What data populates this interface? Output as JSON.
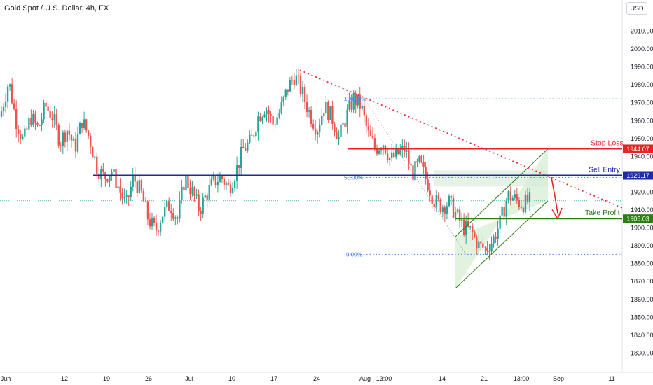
{
  "title": "Gold Spot / U.S. Dollar, 4h, FX",
  "currency_button": "USD",
  "chart_data": {
    "type": "candlestick",
    "title": "Gold Spot / U.S. Dollar, 4h, FX",
    "ylim": [
      1822,
      2020
    ],
    "grid": false,
    "y_ticks": [
      1830,
      1840,
      1850,
      1860,
      1870,
      1880,
      1890,
      1900,
      1910,
      1920,
      1930,
      1940,
      1950,
      1960,
      1970,
      1980,
      1990,
      2000,
      2010
    ],
    "x_tick_labels": [
      "Jun",
      "12",
      "19",
      "26",
      "Jul",
      "10",
      "17",
      "24",
      "Aug",
      "13:00",
      "14",
      "21",
      "13:00",
      "Sep",
      "11"
    ],
    "colors": {
      "up": "#26a69a",
      "down": "#ef5350",
      "stop": "#e52525",
      "entry": "#1e2aa8",
      "profit": "#2e7d14",
      "trend": "#e52525",
      "fib": "#4a86e8"
    },
    "candles_anchor_closes": [
      1965,
      1982,
      1960,
      1948,
      1962,
      1955,
      1968,
      1962,
      1948,
      1955,
      1944,
      1960,
      1950,
      1934,
      1928,
      1932,
      1922,
      1912,
      1928,
      1920,
      1905,
      1898,
      1908,
      1913,
      1905,
      1928,
      1920,
      1910,
      1919,
      1926,
      1928,
      1922,
      1932,
      1944,
      1948,
      1962,
      1968,
      1958,
      1965,
      1978,
      1985,
      1975,
      1964,
      1955,
      1968,
      1962,
      1950,
      1962,
      1972,
      1968,
      1952,
      1944,
      1948,
      1938,
      1941,
      1944,
      1930,
      1936,
      1926,
      1915,
      1912,
      1914,
      1907,
      1900,
      1898,
      1890,
      1888,
      1893,
      1903,
      1918,
      1916,
      1913,
      1915
    ],
    "levels": [
      {
        "name": "Stop Loss",
        "value": 1944.07,
        "label": "1944.07"
      },
      {
        "name": "Sell Entry",
        "value": 1929.17,
        "label": "1929.17"
      },
      {
        "name": "Take Profit",
        "value": 1905.03,
        "label": "1905.03"
      }
    ],
    "fib_labels": [
      "0.00%",
      "50.00%",
      "100.00%"
    ],
    "fib_values": [
      1885,
      1928,
      1972
    ],
    "last_price": 1915
  }
}
